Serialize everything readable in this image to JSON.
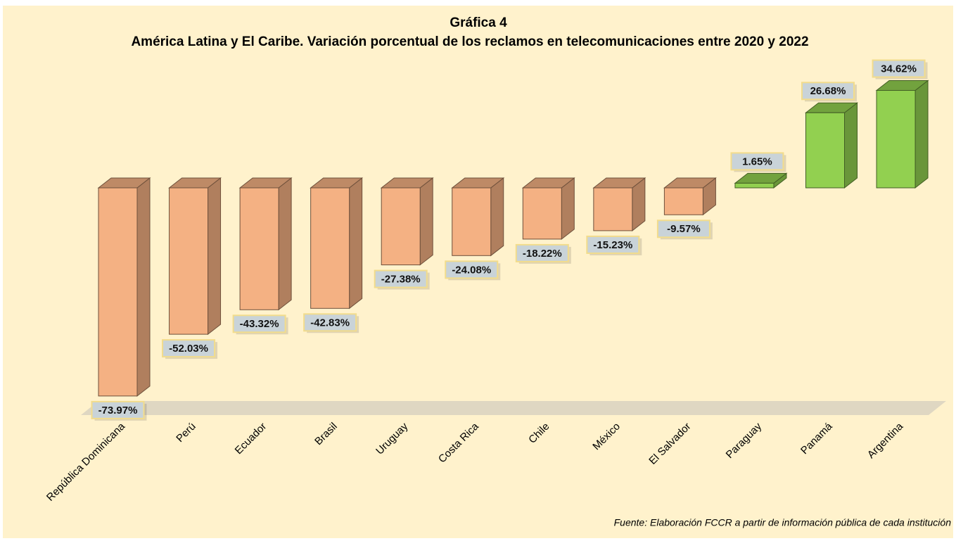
{
  "chart_data": {
    "type": "bar3d",
    "title": "Gráfica 4",
    "subtitle": "América Latina y El Caribe. Variación porcentual de los reclamos en telecomunicaciones entre 2020 y 2022",
    "categories": [
      "República Dominicana",
      "Perú",
      "Ecuador",
      "Brasil",
      "Uruguay",
      "Costa Rica",
      "Chile",
      "México",
      "El Salvador",
      "Paraguay",
      "Panamá",
      "Argentina"
    ],
    "values": [
      -73.97,
      -52.03,
      -43.32,
      -42.83,
      -27.38,
      -24.08,
      -18.22,
      -15.23,
      -9.57,
      1.65,
      26.68,
      34.62
    ],
    "value_labels": [
      "-73.97%",
      "-52.03%",
      "-43.32%",
      "-42.83%",
      "-27.38%",
      "-24.08%",
      "-18.22%",
      "-15.23%",
      "-9.57%",
      "1.65%",
      "26.68%",
      "34.62%"
    ],
    "colors": [
      "#f4b183",
      "#f4b183",
      "#f4b183",
      "#f4b183",
      "#f4b183",
      "#f4b183",
      "#f4b183",
      "#f4b183",
      "#f4b183",
      "#92d050",
      "#92d050",
      "#92d050"
    ],
    "source": "Fuente: Elaboración FCCR a partir de información pública de cada institución"
  }
}
